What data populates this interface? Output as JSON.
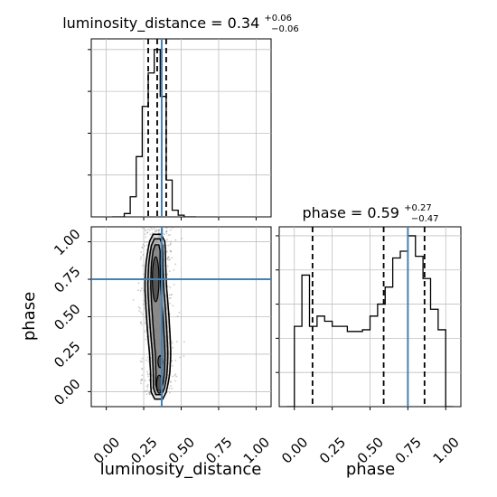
{
  "chart_data": {
    "type": "corner",
    "colors": {
      "truth": "#4682b4",
      "hist": "#000000",
      "grid": "#c0c0c0",
      "points": "#8a8a8a"
    },
    "params": [
      {
        "name": "luminosity_distance",
        "xlabel": "luminosity_distance",
        "range": [
          -0.1,
          1.1
        ],
        "ticks": [
          0.0,
          0.25,
          0.5,
          0.75,
          1.0
        ],
        "tick_labels": [
          "0.00",
          "0.25",
          "0.50",
          "0.75",
          "1.00"
        ],
        "truth": 0.37,
        "quantiles": [
          0.28,
          0.34,
          0.4
        ],
        "title": {
          "base": "luminosity_distance = 0.34",
          "sup": "+0.06",
          "sub": "−0.06"
        }
      },
      {
        "name": "phase",
        "xlabel": "phase",
        "ylabel": "phase",
        "range": [
          -0.1,
          1.1
        ],
        "ticks": [
          0.0,
          0.25,
          0.5,
          0.75,
          1.0
        ],
        "tick_labels": [
          "0.00",
          "0.25",
          "0.50",
          "0.75",
          "1.00"
        ],
        "truth": 0.75,
        "quantiles": [
          0.12,
          0.59,
          0.86
        ],
        "title": {
          "base": "phase = 0.59",
          "sup": "+0.27",
          "sub": "−0.47"
        }
      }
    ],
    "hist_luminosity_distance": {
      "bin_edges": [
        0.04,
        0.08,
        0.12,
        0.16,
        0.2,
        0.24,
        0.28,
        0.32,
        0.36,
        0.4,
        0.44,
        0.48,
        0.52,
        0.56,
        0.6
      ],
      "counts": [
        0.0,
        0.0,
        0.02,
        0.12,
        0.36,
        0.66,
        0.86,
        1.0,
        0.72,
        0.22,
        0.04,
        0.01,
        0.0,
        0.0
      ]
    },
    "hist_phase": {
      "bin_edges": [
        -0.05,
        0.0,
        0.05,
        0.1,
        0.15,
        0.2,
        0.25,
        0.3,
        0.35,
        0.4,
        0.45,
        0.5,
        0.55,
        0.6,
        0.65,
        0.7,
        0.75,
        0.8,
        0.85,
        0.9,
        0.95,
        1.0,
        1.05
      ],
      "counts": [
        0.0,
        0.47,
        0.77,
        0.47,
        0.53,
        0.5,
        0.47,
        0.47,
        0.44,
        0.44,
        0.45,
        0.53,
        0.6,
        0.7,
        0.87,
        0.91,
        1.0,
        0.88,
        0.75,
        0.57,
        0.45,
        0.0
      ]
    },
    "contour_ridge": [
      {
        "phase": 0.0,
        "ld": 0.35
      },
      {
        "phase": 0.12,
        "ld": 0.36
      },
      {
        "phase": 0.25,
        "ld": 0.36
      },
      {
        "phase": 0.4,
        "ld": 0.35
      },
      {
        "phase": 0.55,
        "ld": 0.34
      },
      {
        "phase": 0.7,
        "ld": 0.33
      },
      {
        "phase": 0.85,
        "ld": 0.33
      },
      {
        "phase": 1.0,
        "ld": 0.34
      }
    ]
  }
}
